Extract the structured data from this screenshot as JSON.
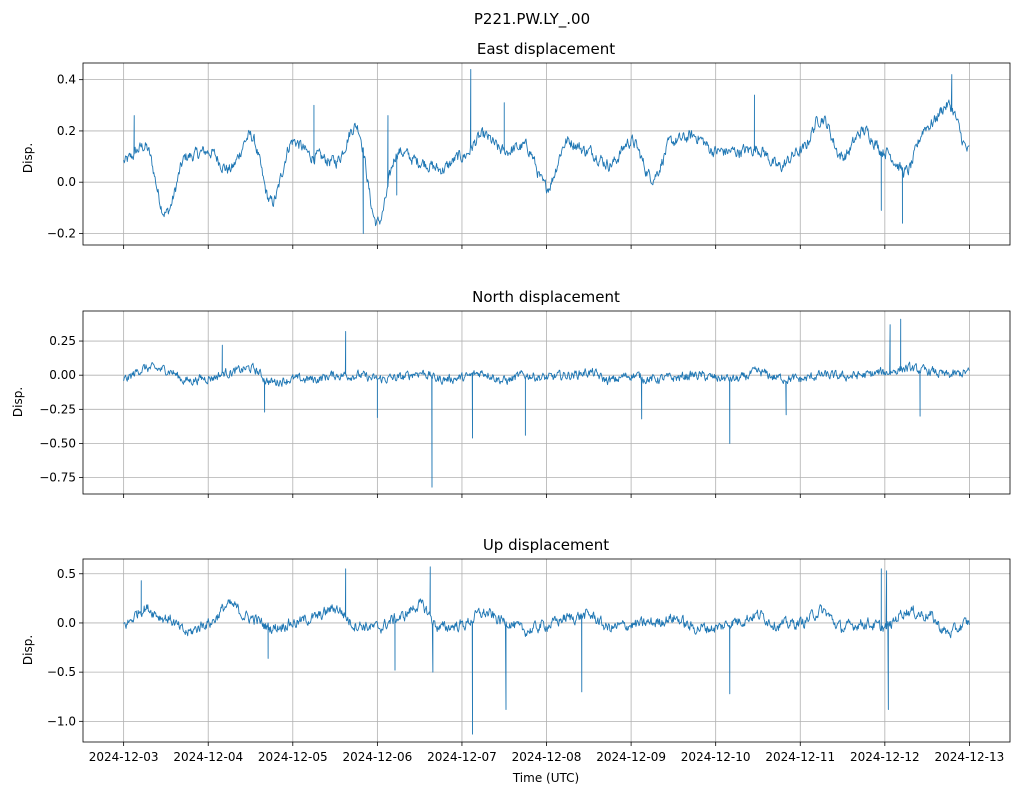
{
  "figure": {
    "suptitle": "P221.PW.LY_.00",
    "xlabel": "Time (UTC)"
  },
  "colors": {
    "series": "#1f77b4",
    "grid": "#b0b0b0",
    "axes": "#000000"
  },
  "chart_data": [
    {
      "type": "line",
      "title": "East displacement",
      "xlabel": "",
      "ylabel": "Disp.",
      "grid": true,
      "xlim": [
        "2024-12-02T12:28",
        "2024-12-13T11:31"
      ],
      "ylim": [
        -0.245,
        0.465
      ],
      "yticks": [
        -0.2,
        0.0,
        0.2,
        0.4
      ],
      "yticklabels": [
        "−0.2",
        "0.0",
        "0.2",
        "0.4"
      ],
      "xticks": [
        "2024-12-03",
        "2024-12-04",
        "2024-12-05",
        "2024-12-06",
        "2024-12-07",
        "2024-12-08",
        "2024-12-09",
        "2024-12-10",
        "2024-12-11",
        "2024-12-12",
        "2024-12-13"
      ],
      "xticklabels_shown": false,
      "noise": 0.025,
      "series": [
        {
          "x": [
            "2024-12-03T00:00",
            "2024-12-03T06:00",
            "2024-12-03T12:00",
            "2024-12-03T18:00",
            "2024-12-04T00:00",
            "2024-12-04T06:00",
            "2024-12-04T12:00",
            "2024-12-04T18:00",
            "2024-12-05T00:00",
            "2024-12-05T06:00",
            "2024-12-05T12:00",
            "2024-12-05T18:00",
            "2024-12-06T00:00",
            "2024-12-06T06:00",
            "2024-12-06T12:00",
            "2024-12-06T18:00",
            "2024-12-07T00:00",
            "2024-12-07T06:00",
            "2024-12-07T12:00",
            "2024-12-07T18:00",
            "2024-12-08T00:00",
            "2024-12-08T06:00",
            "2024-12-08T12:00",
            "2024-12-08T18:00",
            "2024-12-09T00:00",
            "2024-12-09T06:00",
            "2024-12-09T12:00",
            "2024-12-09T18:00",
            "2024-12-10T00:00",
            "2024-12-10T06:00",
            "2024-12-10T12:00",
            "2024-12-10T18:00",
            "2024-12-11T00:00",
            "2024-12-11T06:00",
            "2024-12-11T12:00",
            "2024-12-11T18:00",
            "2024-12-12T00:00",
            "2024-12-12T06:00",
            "2024-12-12T12:00",
            "2024-12-12T18:00",
            "2024-12-13T00:00"
          ],
          "y": [
            0.08,
            0.14,
            -0.12,
            0.1,
            0.12,
            0.05,
            0.18,
            -0.08,
            0.16,
            0.1,
            0.08,
            0.22,
            -0.16,
            0.12,
            0.08,
            0.05,
            0.1,
            0.18,
            0.12,
            0.14,
            -0.02,
            0.16,
            0.12,
            0.07,
            0.16,
            0.02,
            0.16,
            0.18,
            0.12,
            0.12,
            0.13,
            0.06,
            0.12,
            0.25,
            0.1,
            0.2,
            0.12,
            0.04,
            0.22,
            0.3,
            0.12
          ]
        }
      ],
      "spikes": [
        {
          "x": "2024-12-07T02:30",
          "y": 0.44
        },
        {
          "x": "2024-12-05T20:00",
          "y": -0.2
        },
        {
          "x": "2024-12-03T03:00",
          "y": 0.26
        },
        {
          "x": "2024-12-06T05:30",
          "y": -0.05
        },
        {
          "x": "2024-12-06T03:00",
          "y": 0.26
        },
        {
          "x": "2024-12-07T12:00",
          "y": 0.31
        },
        {
          "x": "2024-12-10T11:00",
          "y": 0.34
        },
        {
          "x": "2024-12-11T23:00",
          "y": -0.11
        },
        {
          "x": "2024-12-12T05:00",
          "y": -0.16
        },
        {
          "x": "2024-12-12T19:00",
          "y": 0.42
        },
        {
          "x": "2024-12-05T06:00",
          "y": 0.3
        }
      ]
    },
    {
      "type": "line",
      "title": "North displacement",
      "xlabel": "",
      "ylabel": "Disp.",
      "grid": true,
      "xlim": [
        "2024-12-02T12:28",
        "2024-12-13T11:31"
      ],
      "ylim": [
        -0.87,
        0.47
      ],
      "yticks": [
        -0.75,
        -0.5,
        -0.25,
        0.0,
        0.25
      ],
      "yticklabels": [
        "−0.75",
        "−0.50",
        "−0.25",
        "0.00",
        "0.25"
      ],
      "xticks": [
        "2024-12-03",
        "2024-12-04",
        "2024-12-05",
        "2024-12-06",
        "2024-12-07",
        "2024-12-08",
        "2024-12-09",
        "2024-12-10",
        "2024-12-11",
        "2024-12-12",
        "2024-12-13"
      ],
      "xticklabels_shown": false,
      "noise": 0.035,
      "series": [
        {
          "x": [
            "2024-12-03T00:00",
            "2024-12-03T06:00",
            "2024-12-03T12:00",
            "2024-12-03T18:00",
            "2024-12-04T00:00",
            "2024-12-04T06:00",
            "2024-12-04T12:00",
            "2024-12-04T18:00",
            "2024-12-05T00:00",
            "2024-12-05T06:00",
            "2024-12-05T12:00",
            "2024-12-05T18:00",
            "2024-12-06T00:00",
            "2024-12-06T06:00",
            "2024-12-06T12:00",
            "2024-12-06T18:00",
            "2024-12-07T00:00",
            "2024-12-07T06:00",
            "2024-12-07T12:00",
            "2024-12-07T18:00",
            "2024-12-08T00:00",
            "2024-12-08T06:00",
            "2024-12-08T12:00",
            "2024-12-08T18:00",
            "2024-12-09T00:00",
            "2024-12-09T06:00",
            "2024-12-09T12:00",
            "2024-12-09T18:00",
            "2024-12-10T00:00",
            "2024-12-10T06:00",
            "2024-12-10T12:00",
            "2024-12-10T18:00",
            "2024-12-11T00:00",
            "2024-12-11T06:00",
            "2024-12-11T12:00",
            "2024-12-11T18:00",
            "2024-12-12T00:00",
            "2024-12-12T06:00",
            "2024-12-12T12:00",
            "2024-12-12T18:00",
            "2024-12-13T00:00"
          ],
          "y": [
            -0.03,
            0.05,
            0.04,
            -0.04,
            -0.02,
            0.02,
            0.05,
            -0.05,
            -0.03,
            -0.03,
            0.0,
            0.0,
            -0.03,
            -0.02,
            0.02,
            -0.03,
            -0.02,
            0.02,
            -0.04,
            0.0,
            -0.02,
            0.0,
            0.02,
            -0.04,
            0.0,
            -0.03,
            -0.02,
            0.0,
            -0.02,
            -0.03,
            0.02,
            -0.02,
            -0.03,
            0.0,
            -0.01,
            0.0,
            0.02,
            0.05,
            0.03,
            0.0,
            0.02
          ]
        }
      ],
      "spikes": [
        {
          "x": "2024-12-06T15:30",
          "y": -0.82
        },
        {
          "x": "2024-12-07T03:00",
          "y": -0.46
        },
        {
          "x": "2024-12-07T18:00",
          "y": -0.44
        },
        {
          "x": "2024-12-10T04:00",
          "y": -0.5
        },
        {
          "x": "2024-12-12T04:30",
          "y": 0.41
        },
        {
          "x": "2024-12-12T01:30",
          "y": 0.37
        },
        {
          "x": "2024-12-05T15:00",
          "y": 0.32
        },
        {
          "x": "2024-12-06T00:00",
          "y": -0.31
        },
        {
          "x": "2024-12-09T03:00",
          "y": -0.32
        },
        {
          "x": "2024-12-10T20:00",
          "y": -0.29
        },
        {
          "x": "2024-12-12T10:00",
          "y": -0.3
        },
        {
          "x": "2024-12-04T04:00",
          "y": 0.22
        },
        {
          "x": "2024-12-04T16:00",
          "y": -0.27
        }
      ]
    },
    {
      "type": "line",
      "title": "Up displacement",
      "xlabel": "Time (UTC)",
      "ylabel": "Disp.",
      "grid": true,
      "xlim": [
        "2024-12-02T12:28",
        "2024-12-13T11:31"
      ],
      "ylim": [
        -1.21,
        0.65
      ],
      "yticks": [
        -1.0,
        -0.5,
        0.0,
        0.5
      ],
      "yticklabels": [
        "−1.0",
        "−0.5",
        "0.0",
        "0.5"
      ],
      "xticks": [
        "2024-12-03",
        "2024-12-04",
        "2024-12-05",
        "2024-12-06",
        "2024-12-07",
        "2024-12-08",
        "2024-12-09",
        "2024-12-10",
        "2024-12-11",
        "2024-12-12",
        "2024-12-13"
      ],
      "xticklabels": [
        "2024-12-03",
        "2024-12-04",
        "2024-12-05",
        "2024-12-06",
        "2024-12-07",
        "2024-12-08",
        "2024-12-09",
        "2024-12-10",
        "2024-12-11",
        "2024-12-12",
        "2024-12-13"
      ],
      "xticklabels_shown": true,
      "noise": 0.06,
      "series": [
        {
          "x": [
            "2024-12-03T00:00",
            "2024-12-03T06:00",
            "2024-12-03T12:00",
            "2024-12-03T18:00",
            "2024-12-04T00:00",
            "2024-12-04T06:00",
            "2024-12-04T12:00",
            "2024-12-04T18:00",
            "2024-12-05T00:00",
            "2024-12-05T06:00",
            "2024-12-05T12:00",
            "2024-12-05T18:00",
            "2024-12-06T00:00",
            "2024-12-06T06:00",
            "2024-12-06T12:00",
            "2024-12-06T18:00",
            "2024-12-07T00:00",
            "2024-12-07T06:00",
            "2024-12-07T12:00",
            "2024-12-07T18:00",
            "2024-12-08T00:00",
            "2024-12-08T06:00",
            "2024-12-08T12:00",
            "2024-12-08T18:00",
            "2024-12-09T00:00",
            "2024-12-09T06:00",
            "2024-12-09T12:00",
            "2024-12-09T18:00",
            "2024-12-10T00:00",
            "2024-12-10T06:00",
            "2024-12-10T12:00",
            "2024-12-10T18:00",
            "2024-12-11T00:00",
            "2024-12-11T06:00",
            "2024-12-11T12:00",
            "2024-12-11T18:00",
            "2024-12-12T00:00",
            "2024-12-12T06:00",
            "2024-12-12T12:00",
            "2024-12-12T18:00",
            "2024-12-13T00:00"
          ],
          "y": [
            -0.02,
            0.15,
            0.05,
            -0.1,
            0.0,
            0.18,
            0.05,
            -0.05,
            0.0,
            0.05,
            0.15,
            -0.02,
            -0.05,
            0.05,
            0.18,
            -0.05,
            -0.02,
            0.1,
            0.02,
            -0.08,
            -0.02,
            0.05,
            0.08,
            -0.05,
            -0.02,
            0.0,
            0.05,
            -0.05,
            -0.05,
            0.02,
            0.08,
            -0.02,
            0.0,
            0.12,
            -0.05,
            0.0,
            -0.05,
            0.12,
            0.08,
            -0.1,
            0.0
          ]
        }
      ],
      "spikes": [
        {
          "x": "2024-12-07T03:00",
          "y": -1.13
        },
        {
          "x": "2024-12-12T01:00",
          "y": -0.88
        },
        {
          "x": "2024-12-07T12:30",
          "y": -0.88
        },
        {
          "x": "2024-12-10T04:00",
          "y": -0.72
        },
        {
          "x": "2024-12-08T10:00",
          "y": -0.7
        },
        {
          "x": "2024-12-05T15:00",
          "y": 0.55
        },
        {
          "x": "2024-12-06T15:00",
          "y": 0.57
        },
        {
          "x": "2024-12-06T15:45",
          "y": -0.5
        },
        {
          "x": "2024-12-11T23:00",
          "y": 0.55
        },
        {
          "x": "2024-12-12T00:30",
          "y": 0.53
        },
        {
          "x": "2024-12-06T05:00",
          "y": -0.48
        },
        {
          "x": "2024-12-04T17:00",
          "y": -0.36
        },
        {
          "x": "2024-12-03T05:00",
          "y": 0.43
        }
      ]
    }
  ]
}
